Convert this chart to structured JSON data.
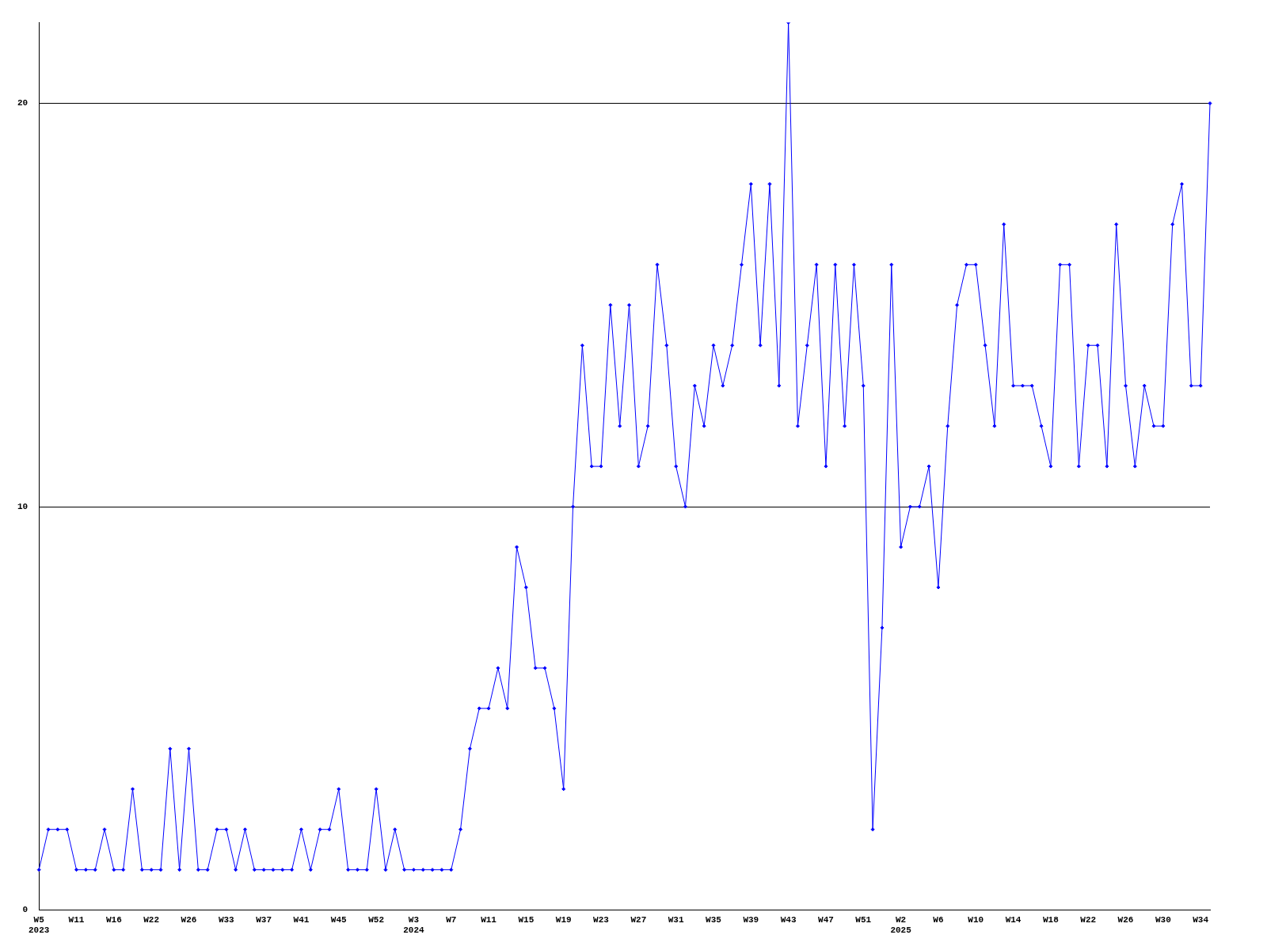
{
  "chart_data": {
    "type": "line",
    "categories": [
      "W5\n2023",
      null,
      null,
      null,
      "W11",
      null,
      null,
      null,
      "W16",
      null,
      null,
      null,
      "W22",
      null,
      null,
      null,
      "W26",
      null,
      null,
      null,
      "W33",
      null,
      null,
      null,
      "W37",
      null,
      null,
      null,
      "W41",
      null,
      null,
      null,
      "W45",
      null,
      null,
      null,
      "W52",
      null,
      null,
      null,
      "W3\n2024",
      null,
      null,
      null,
      "W7",
      null,
      null,
      null,
      "W11",
      null,
      null,
      null,
      "W15",
      null,
      null,
      null,
      "W19",
      null,
      null,
      null,
      "W23",
      null,
      null,
      null,
      "W27",
      null,
      null,
      null,
      "W31",
      null,
      null,
      null,
      "W35",
      null,
      null,
      null,
      "W39",
      null,
      null,
      null,
      "W43",
      null,
      null,
      null,
      "W47",
      null,
      null,
      null,
      "W51",
      null,
      null,
      null,
      "W2\n2025",
      null,
      null,
      null,
      "W6",
      null,
      null,
      null,
      "W10",
      null,
      null,
      null,
      "W14",
      null,
      null,
      null,
      "W18",
      null,
      null,
      null,
      "W22",
      null,
      null,
      null,
      "W26",
      null,
      null,
      null,
      "W30",
      null,
      null,
      null,
      "W34",
      null
    ],
    "series": [
      {
        "color": "#0000ff",
        "values": [
          1,
          2,
          2,
          2,
          1,
          1,
          1,
          2,
          1,
          1,
          3,
          1,
          1,
          1,
          4,
          1,
          4,
          1,
          1,
          2,
          2,
          1,
          2,
          1,
          1,
          1,
          1,
          1,
          2,
          1,
          2,
          2,
          3,
          1,
          1,
          1,
          3,
          1,
          2,
          1,
          1,
          1,
          1,
          1,
          1,
          2,
          4,
          5,
          5,
          6,
          5,
          9,
          8,
          6,
          6,
          5,
          3,
          10,
          14,
          11,
          11,
          15,
          12,
          15,
          11,
          12,
          16,
          14,
          11,
          10,
          13,
          12,
          14,
          13,
          14,
          16,
          18,
          14,
          18,
          13,
          22,
          12,
          14,
          16,
          11,
          16,
          12,
          16,
          13,
          2,
          7,
          16,
          9,
          10,
          10,
          11,
          8,
          12,
          15,
          16,
          16,
          14,
          12,
          17,
          13,
          13,
          13,
          12,
          11,
          16,
          16,
          11,
          14,
          14,
          11,
          17,
          13,
          11,
          13,
          12,
          12,
          17,
          18,
          13,
          13,
          20
        ]
      }
    ],
    "ylim": [
      0,
      22
    ],
    "yticks": [
      0,
      10,
      20
    ],
    "grid": "y",
    "legend": false,
    "marker": "diamond",
    "line_style": "solid"
  }
}
